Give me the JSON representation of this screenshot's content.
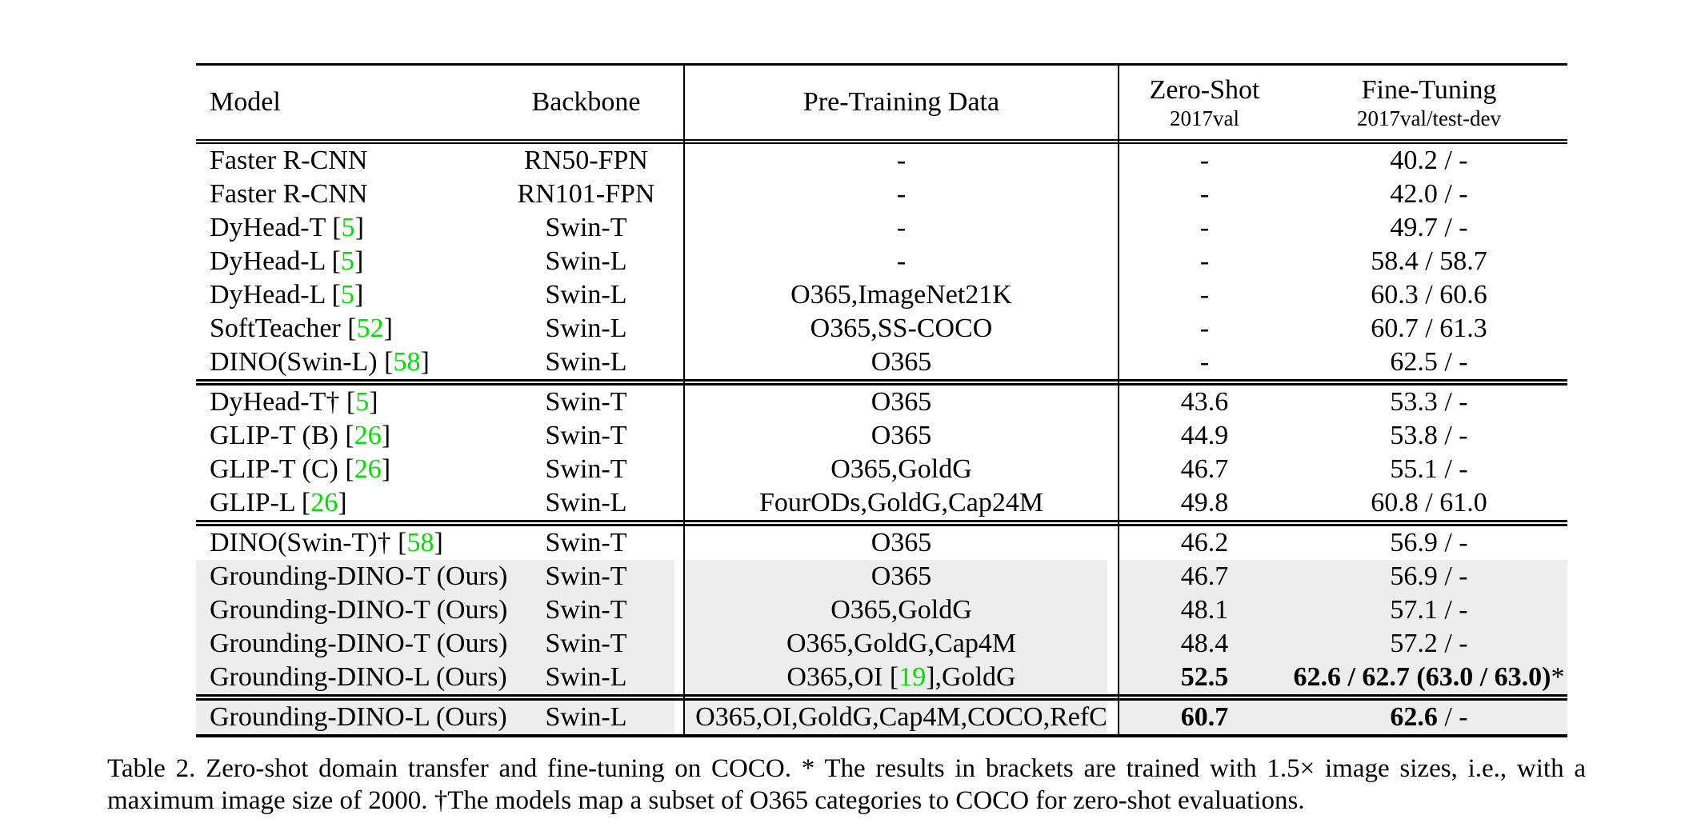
{
  "colors": {
    "citation_green": "#00e000",
    "row_highlight": "#ededed",
    "text": "#000000",
    "rule": "#000000"
  },
  "table": {
    "header": {
      "model": "Model",
      "backbone": "Backbone",
      "pretrain": "Pre-Training Data",
      "zeroshot_line1": "Zero-Shot",
      "zeroshot_line2": "2017val",
      "finetune_line1": "Fine-Tuning",
      "finetune_line2": "2017val/test-dev"
    },
    "sections": [
      {
        "rows": [
          {
            "shaded": false,
            "model": [
              [
                "Faster R-CNN",
                ""
              ]
            ],
            "backbone": "RN50-FPN",
            "pretrain": [
              [
                "-",
                ""
              ]
            ],
            "zeroshot": [
              [
                "-",
                ""
              ]
            ],
            "finetune": [
              [
                "40.2 / -",
                ""
              ]
            ]
          },
          {
            "shaded": false,
            "model": [
              [
                "Faster R-CNN",
                ""
              ]
            ],
            "backbone": "RN101-FPN",
            "pretrain": [
              [
                "-",
                ""
              ]
            ],
            "zeroshot": [
              [
                "-",
                ""
              ]
            ],
            "finetune": [
              [
                "42.0 / -",
                ""
              ]
            ]
          },
          {
            "shaded": false,
            "model": [
              [
                "DyHead-T [",
                ""
              ],
              [
                "5",
                "cite"
              ],
              [
                "]",
                ""
              ]
            ],
            "backbone": "Swin-T",
            "pretrain": [
              [
                "-",
                ""
              ]
            ],
            "zeroshot": [
              [
                "-",
                ""
              ]
            ],
            "finetune": [
              [
                "49.7 / -",
                ""
              ]
            ]
          },
          {
            "shaded": false,
            "model": [
              [
                "DyHead-L [",
                ""
              ],
              [
                "5",
                "cite"
              ],
              [
                "]",
                ""
              ]
            ],
            "backbone": "Swin-L",
            "pretrain": [
              [
                "-",
                ""
              ]
            ],
            "zeroshot": [
              [
                "-",
                ""
              ]
            ],
            "finetune": [
              [
                "58.4 / 58.7",
                ""
              ]
            ]
          },
          {
            "shaded": false,
            "model": [
              [
                "DyHead-L [",
                ""
              ],
              [
                "5",
                "cite"
              ],
              [
                "]",
                ""
              ]
            ],
            "backbone": "Swin-L",
            "pretrain": [
              [
                "O365,ImageNet21K",
                ""
              ]
            ],
            "zeroshot": [
              [
                "-",
                ""
              ]
            ],
            "finetune": [
              [
                "60.3 / 60.6",
                ""
              ]
            ]
          },
          {
            "shaded": false,
            "model": [
              [
                "SoftTeacher [",
                ""
              ],
              [
                "52",
                "cite"
              ],
              [
                "]",
                ""
              ]
            ],
            "backbone": "Swin-L",
            "pretrain": [
              [
                "O365,SS-COCO",
                ""
              ]
            ],
            "zeroshot": [
              [
                "-",
                ""
              ]
            ],
            "finetune": [
              [
                "60.7 / 61.3",
                ""
              ]
            ]
          },
          {
            "shaded": false,
            "model": [
              [
                "DINO(Swin-L) [",
                ""
              ],
              [
                "58",
                "cite"
              ],
              [
                "]",
                ""
              ]
            ],
            "backbone": "Swin-L",
            "pretrain": [
              [
                "O365",
                ""
              ]
            ],
            "zeroshot": [
              [
                "-",
                ""
              ]
            ],
            "finetune": [
              [
                "62.5 / -",
                ""
              ]
            ]
          }
        ]
      },
      {
        "rows": [
          {
            "shaded": false,
            "model": [
              [
                "DyHead-T† [",
                ""
              ],
              [
                "5",
                "cite"
              ],
              [
                "]",
                ""
              ]
            ],
            "backbone": "Swin-T",
            "pretrain": [
              [
                "O365",
                ""
              ]
            ],
            "zeroshot": [
              [
                "43.6",
                ""
              ]
            ],
            "finetune": [
              [
                "53.3 / -",
                ""
              ]
            ]
          },
          {
            "shaded": false,
            "model": [
              [
                "GLIP-T (B) [",
                ""
              ],
              [
                "26",
                "cite"
              ],
              [
                "]",
                ""
              ]
            ],
            "backbone": "Swin-T",
            "pretrain": [
              [
                "O365",
                ""
              ]
            ],
            "zeroshot": [
              [
                "44.9",
                ""
              ]
            ],
            "finetune": [
              [
                "53.8 / -",
                ""
              ]
            ]
          },
          {
            "shaded": false,
            "model": [
              [
                "GLIP-T (C) [",
                ""
              ],
              [
                "26",
                "cite"
              ],
              [
                "]",
                ""
              ]
            ],
            "backbone": "Swin-T",
            "pretrain": [
              [
                "O365,GoldG",
                ""
              ]
            ],
            "zeroshot": [
              [
                "46.7",
                ""
              ]
            ],
            "finetune": [
              [
                "55.1 / -",
                ""
              ]
            ]
          },
          {
            "shaded": false,
            "model": [
              [
                "GLIP-L [",
                ""
              ],
              [
                "26",
                "cite"
              ],
              [
                "]",
                ""
              ]
            ],
            "backbone": "Swin-L",
            "pretrain": [
              [
                "FourODs,GoldG,Cap24M",
                ""
              ]
            ],
            "zeroshot": [
              [
                "49.8",
                ""
              ]
            ],
            "finetune": [
              [
                "60.8 / 61.0",
                ""
              ]
            ]
          }
        ]
      },
      {
        "rows": [
          {
            "shaded": false,
            "model": [
              [
                "DINO(Swin-T)† [",
                ""
              ],
              [
                "58",
                "cite"
              ],
              [
                "]",
                ""
              ]
            ],
            "backbone": "Swin-T",
            "pretrain": [
              [
                "O365",
                ""
              ]
            ],
            "zeroshot": [
              [
                "46.2",
                ""
              ]
            ],
            "finetune": [
              [
                "56.9 / -",
                ""
              ]
            ]
          },
          {
            "shaded": true,
            "model": [
              [
                "Grounding-DINO-T (Ours)",
                ""
              ]
            ],
            "backbone": "Swin-T",
            "pretrain": [
              [
                "O365",
                ""
              ]
            ],
            "zeroshot": [
              [
                "46.7",
                ""
              ]
            ],
            "finetune": [
              [
                "56.9 / -",
                ""
              ]
            ]
          },
          {
            "shaded": true,
            "model": [
              [
                "Grounding-DINO-T (Ours)",
                ""
              ]
            ],
            "backbone": "Swin-T",
            "pretrain": [
              [
                "O365,GoldG",
                ""
              ]
            ],
            "zeroshot": [
              [
                "48.1",
                ""
              ]
            ],
            "finetune": [
              [
                "57.1 / -",
                ""
              ]
            ]
          },
          {
            "shaded": true,
            "model": [
              [
                "Grounding-DINO-T (Ours)",
                ""
              ]
            ],
            "backbone": "Swin-T",
            "pretrain": [
              [
                "O365,GoldG,Cap4M",
                ""
              ]
            ],
            "zeroshot": [
              [
                "48.4",
                ""
              ]
            ],
            "finetune": [
              [
                "57.2 / -",
                ""
              ]
            ]
          },
          {
            "shaded": true,
            "model": [
              [
                "Grounding-DINO-L (Ours)",
                ""
              ]
            ],
            "backbone": "Swin-L",
            "pretrain": [
              [
                "O365,OI [",
                ""
              ],
              [
                "19",
                "cite"
              ],
              [
                "],GoldG",
                ""
              ]
            ],
            "zeroshot": [
              [
                "52.5",
                "bold"
              ]
            ],
            "finetune": [
              [
                "62.6 / 62.7 (63.0 / 63.0)",
                "bold"
              ],
              [
                "*",
                ""
              ]
            ]
          }
        ]
      },
      {
        "rows": [
          {
            "shaded": true,
            "model": [
              [
                "Grounding-DINO-L (Ours)",
                ""
              ]
            ],
            "backbone": "Swin-L",
            "pretrain": [
              [
                "O365,OI,GoldG,Cap4M,COCO,RefC",
                ""
              ]
            ],
            "zeroshot": [
              [
                "60.7",
                "bold"
              ]
            ],
            "finetune": [
              [
                "62.6",
                "bold"
              ],
              [
                " / -",
                ""
              ]
            ]
          }
        ]
      }
    ]
  },
  "caption": {
    "line1": "Table 2.  Zero-shot domain transfer and fine-tuning on COCO. * The results in brackets are trained with 1.5× image sizes, i.e., with a",
    "line2": "maximum image size of 2000. †The models map a subset of O365 categories to COCO for zero-shot evaluations."
  }
}
